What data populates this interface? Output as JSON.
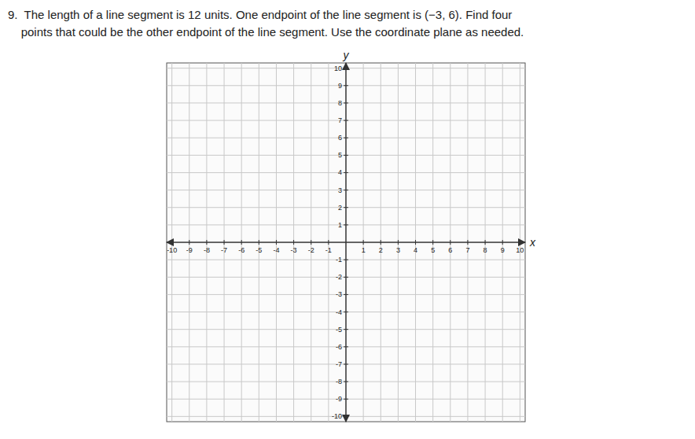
{
  "chart_data": {
    "type": "coordinate_plane",
    "title": "9.  The length of a line segment is 12 units. One endpoint of the line segment is (−3, 6). Find four",
    "subtitle": "    points that could be the other endpoint of the line segment. Use the coordinate plane as needed.",
    "xlabel": "x",
    "ylabel": "y",
    "xlim": [
      -10.3,
      10.3
    ],
    "ylim": [
      -10.3,
      10.3
    ],
    "xticks": [
      -10,
      -9,
      -8,
      -7,
      -6,
      -5,
      -4,
      -3,
      -2,
      -1,
      1,
      2,
      3,
      4,
      5,
      6,
      7,
      8,
      9,
      10
    ],
    "yticks": [
      -10,
      -9,
      -8,
      -7,
      -6,
      -5,
      -4,
      -3,
      -2,
      -1,
      1,
      2,
      3,
      4,
      5,
      6,
      7,
      8,
      9,
      10
    ],
    "grid": true
  }
}
